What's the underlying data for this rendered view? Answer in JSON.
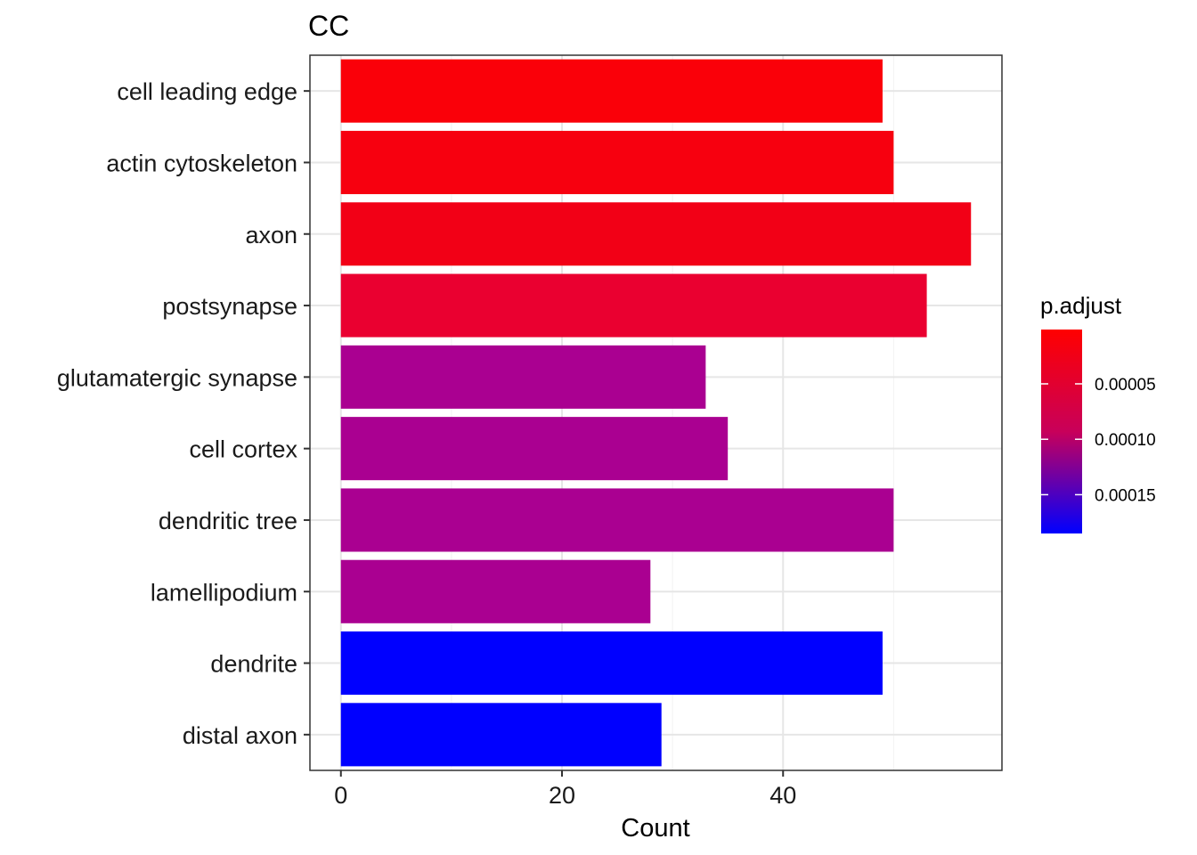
{
  "chart_data": {
    "type": "bar",
    "orientation": "horizontal",
    "title": "CC",
    "xlabel": "Count",
    "ylabel": "",
    "xlim": [
      -2.8,
      59.8
    ],
    "xticks": [
      0,
      20,
      40
    ],
    "grid": true,
    "categories": [
      "cell leading edge",
      "actin cytoskeleton",
      "axon",
      "postsynapse",
      "glutamatergic synapse",
      "cell cortex",
      "dendritic tree",
      "lamellipodium",
      "dendrite",
      "distal axon"
    ],
    "values": [
      49,
      50,
      57,
      53,
      33,
      35,
      50,
      28,
      49,
      29
    ],
    "p_adjust": [
      1e-06,
      5e-06,
      1e-05,
      2.2e-05,
      9e-05,
      9e-05,
      9e-05,
      9e-05,
      0.00018,
      0.00018
    ],
    "colors": [
      "#FA0009",
      "#F7000F",
      "#F20016",
      "#EA0030",
      "#AA0091",
      "#AA0091",
      "#AA0091",
      "#AA0091",
      "#0000FF",
      "#0000FF"
    ],
    "legend": {
      "title": "p.adjust",
      "placement": "right",
      "ticks": [
        5e-05,
        0.0001,
        0.00015
      ],
      "tick_labels": [
        "0.00005",
        "0.00010",
        "0.00015"
      ],
      "range": [
        1e-06,
        0.000185
      ],
      "color_low": "#FF0000",
      "color_high": "#0000FF"
    }
  }
}
